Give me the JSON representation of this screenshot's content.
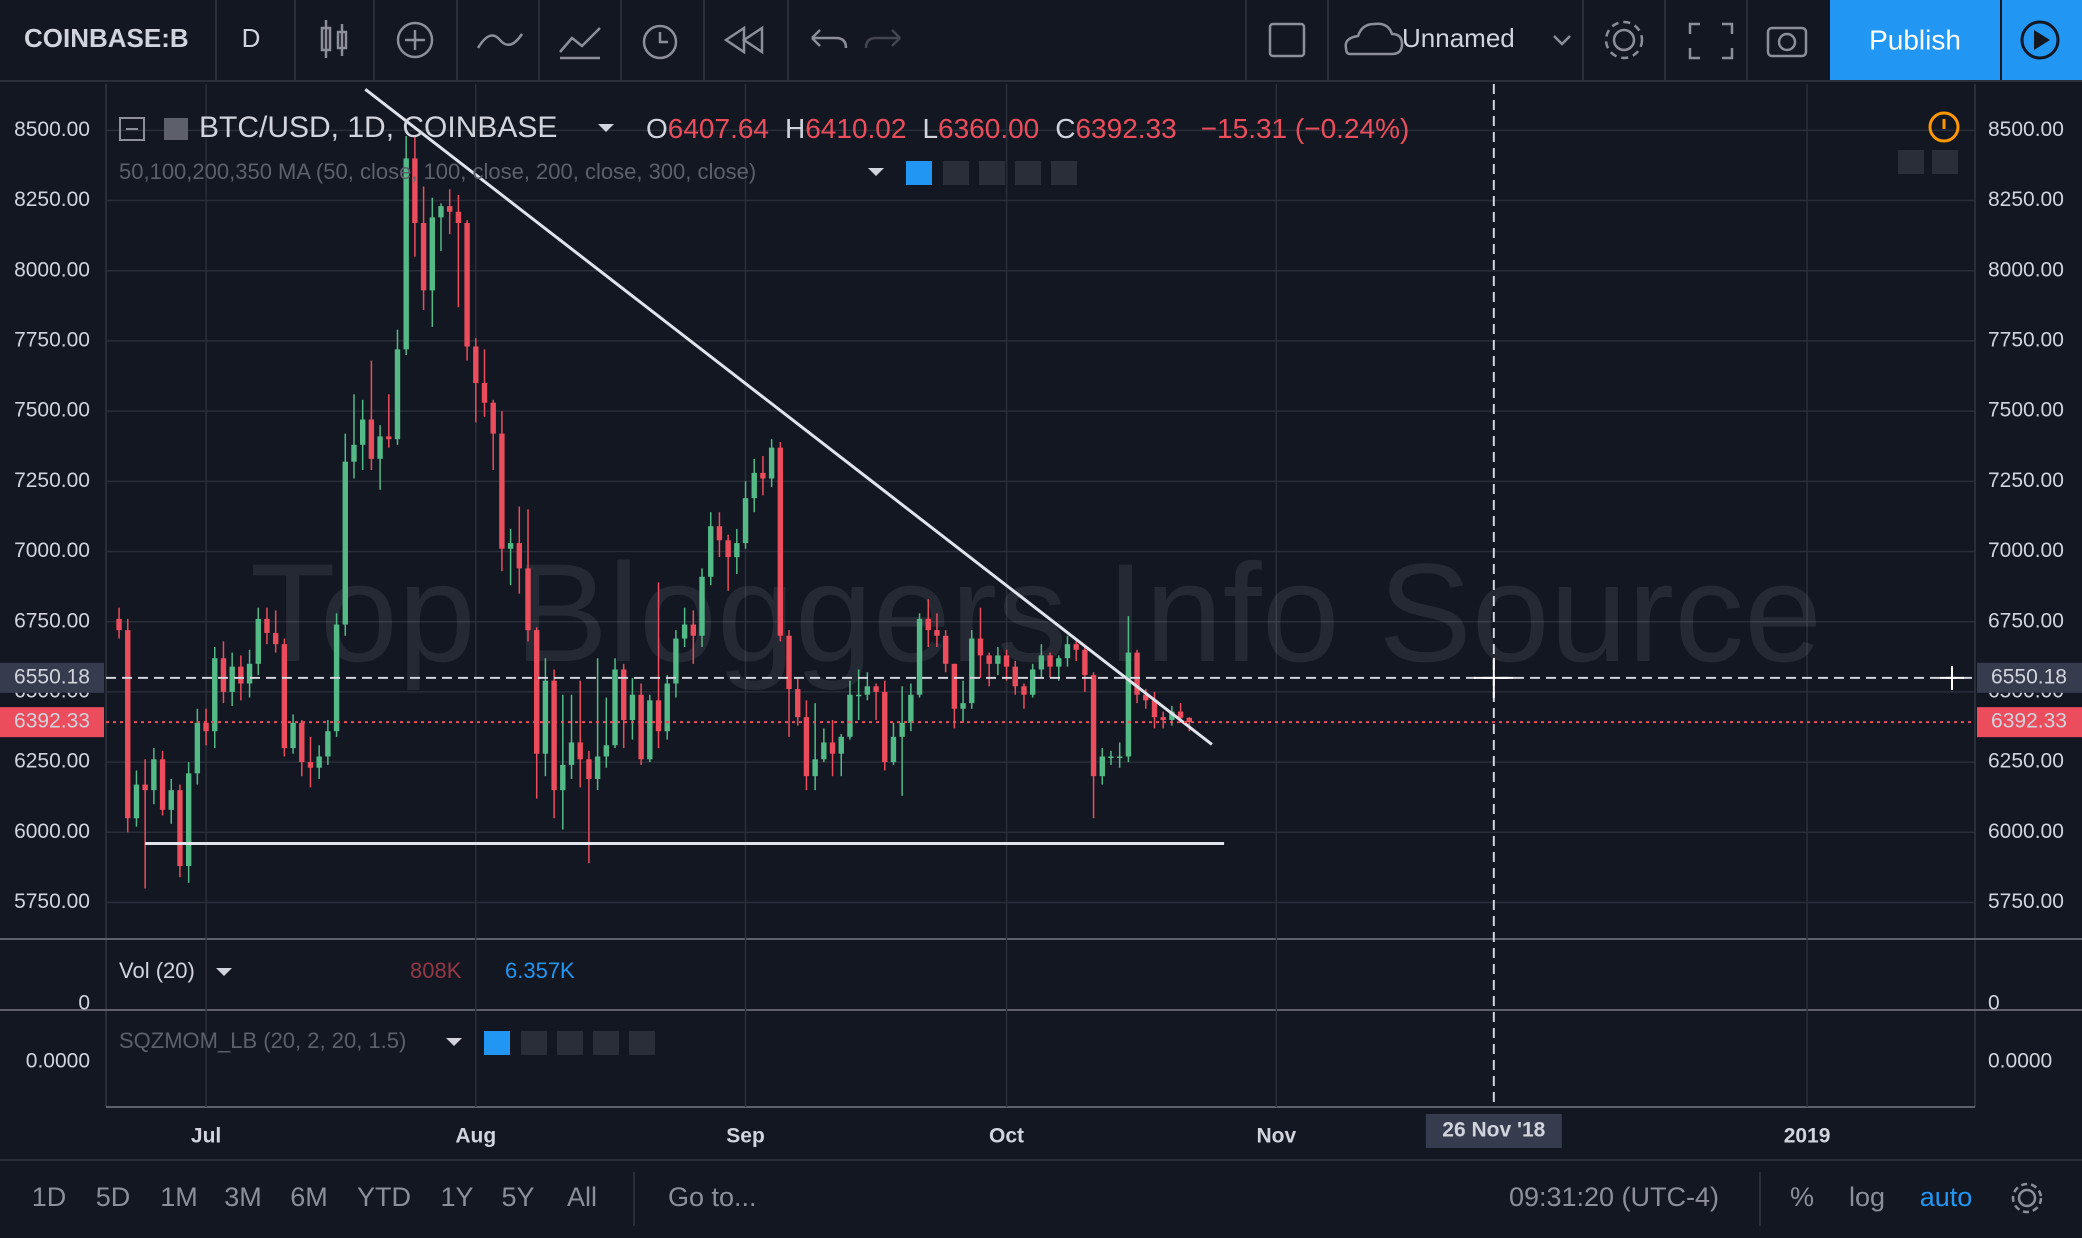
{
  "toolbar": {
    "symbol": "COINBASE:B",
    "interval": "D",
    "layout": "Unnamed",
    "publish": "Publish"
  },
  "header": {
    "title": "BTC/USD, 1D, COINBASE",
    "o_label": "O",
    "open": "6407.64",
    "h_label": "H",
    "high": "6410.02",
    "l_label": "L",
    "low": "6360.00",
    "c_label": "C",
    "close": "6392.33",
    "change": "−15.31 (−0.24%)"
  },
  "indicators": {
    "ma": "50,100,200,350 MA (50, close, 100, close, 200, close, 300, close)",
    "vol": "Vol (20)",
    "vol_value_1": "808K",
    "vol_value_2": "6.357K",
    "vol_zero": "0",
    "sqz": "SQZMOM_LB (20, 2, 20, 1.5)",
    "sqz_value": "0.0000"
  },
  "watermark": "Top Bloggers Info Source",
  "bottom_bar": {
    "ranges": [
      "1D",
      "5D",
      "1M",
      "3M",
      "6M",
      "YTD",
      "1Y",
      "5Y",
      "All"
    ],
    "goto": "Go to...",
    "clock": "09:31:20 (UTC-4)",
    "percent": "%",
    "log": "log",
    "auto": "auto"
  },
  "chart_data": {
    "type": "candlestick",
    "x": [
      -10,
      -9,
      -8,
      -7,
      -6,
      -5,
      -4,
      -3,
      -2,
      -1,
      0,
      1,
      2,
      3,
      4,
      5,
      6,
      7,
      8,
      9,
      10,
      11,
      12,
      13,
      14,
      15,
      16,
      17,
      18,
      19,
      20,
      21,
      22,
      23,
      24,
      25,
      26,
      27,
      28,
      29,
      30,
      31,
      32,
      33,
      34,
      35,
      36,
      37,
      38,
      39,
      40,
      41,
      42,
      43,
      44,
      45,
      46,
      47,
      48,
      49,
      50,
      51,
      52,
      53,
      54,
      55,
      56,
      57,
      58,
      59,
      60,
      61,
      62,
      63,
      64,
      65,
      66,
      67,
      68,
      69,
      70,
      71,
      72,
      73,
      74,
      75,
      76,
      77,
      78,
      79,
      80,
      81,
      82,
      83,
      84,
      85,
      86,
      87,
      88,
      89,
      90,
      91,
      92,
      93,
      94,
      95,
      96,
      97,
      98,
      99,
      100,
      101,
      102,
      103,
      104,
      105,
      106,
      107,
      108,
      109,
      110,
      111,
      112,
      113
    ],
    "ohlc": [
      [
        6760,
        6800,
        6690,
        6720
      ],
      [
        6720,
        6760,
        6000,
        6050
      ],
      [
        6050,
        6220,
        6020,
        6170
      ],
      [
        6170,
        6260,
        5800,
        6150
      ],
      [
        6150,
        6300,
        6100,
        6260
      ],
      [
        6260,
        6290,
        6060,
        6080
      ],
      [
        6080,
        6190,
        6030,
        6150
      ],
      [
        6150,
        6170,
        5840,
        5880
      ],
      [
        5880,
        6250,
        5820,
        6210
      ],
      [
        6210,
        6440,
        6170,
        6390
      ],
      [
        6390,
        6440,
        6310,
        6360
      ],
      [
        6360,
        6660,
        6300,
        6620
      ],
      [
        6620,
        6680,
        6460,
        6500
      ],
      [
        6500,
        6640,
        6450,
        6590
      ],
      [
        6590,
        6630,
        6470,
        6530
      ],
      [
        6530,
        6650,
        6480,
        6600
      ],
      [
        6600,
        6800,
        6560,
        6760
      ],
      [
        6760,
        6800,
        6670,
        6710
      ],
      [
        6710,
        6790,
        6640,
        6670
      ],
      [
        6670,
        6690,
        6270,
        6300
      ],
      [
        6300,
        6420,
        6280,
        6390
      ],
      [
        6390,
        6400,
        6200,
        6250
      ],
      [
        6250,
        6340,
        6160,
        6230
      ],
      [
        6230,
        6310,
        6190,
        6270
      ],
      [
        6270,
        6400,
        6240,
        6360
      ],
      [
        6360,
        6780,
        6340,
        6740
      ],
      [
        6740,
        7420,
        6700,
        7320
      ],
      [
        7320,
        7560,
        7260,
        7380
      ],
      [
        7380,
        7540,
        7290,
        7470
      ],
      [
        7470,
        7680,
        7290,
        7330
      ],
      [
        7330,
        7450,
        7220,
        7410
      ],
      [
        7410,
        7560,
        7370,
        7400
      ],
      [
        7400,
        7790,
        7380,
        7720
      ],
      [
        7720,
        8480,
        7700,
        8400
      ],
      [
        8400,
        8480,
        8050,
        8170
      ],
      [
        8170,
        8300,
        7860,
        7930
      ],
      [
        7930,
        8260,
        7800,
        8190
      ],
      [
        8190,
        8240,
        8070,
        8230
      ],
      [
        8230,
        8290,
        8130,
        8210
      ],
      [
        8210,
        8270,
        7870,
        8170
      ],
      [
        8170,
        8180,
        7680,
        7730
      ],
      [
        7730,
        7760,
        7460,
        7600
      ],
      [
        7600,
        7720,
        7480,
        7530
      ],
      [
        7530,
        7540,
        7290,
        7420
      ],
      [
        7420,
        7500,
        6930,
        7010
      ],
      [
        7010,
        7080,
        6880,
        7030
      ],
      [
        7030,
        7160,
        6850,
        6940
      ],
      [
        6940,
        7150,
        6680,
        6720
      ],
      [
        6720,
        6730,
        6120,
        6280
      ],
      [
        6280,
        6620,
        6200,
        6540
      ],
      [
        6540,
        6580,
        6050,
        6150
      ],
      [
        6150,
        6490,
        6010,
        6240
      ],
      [
        6240,
        6490,
        6190,
        6320
      ],
      [
        6320,
        6540,
        6160,
        6260
      ],
      [
        6260,
        6290,
        5890,
        6190
      ],
      [
        6190,
        6620,
        6150,
        6270
      ],
      [
        6270,
        6480,
        6230,
        6310
      ],
      [
        6310,
        6620,
        6300,
        6580
      ],
      [
        6580,
        6600,
        6300,
        6400
      ],
      [
        6400,
        6550,
        6330,
        6490
      ],
      [
        6490,
        6530,
        6240,
        6260
      ],
      [
        6260,
        6490,
        6250,
        6470
      ],
      [
        6470,
        6890,
        6300,
        6360
      ],
      [
        6360,
        6560,
        6330,
        6530
      ],
      [
        6530,
        6720,
        6480,
        6690
      ],
      [
        6690,
        6800,
        6660,
        6740
      ],
      [
        6740,
        6790,
        6600,
        6700
      ],
      [
        6700,
        6940,
        6660,
        6910
      ],
      [
        6910,
        7140,
        6880,
        7090
      ],
      [
        7090,
        7140,
        6980,
        7040
      ],
      [
        7040,
        7060,
        6860,
        6980
      ],
      [
        6980,
        7080,
        6920,
        7030
      ],
      [
        7030,
        7250,
        7010,
        7190
      ],
      [
        7190,
        7330,
        7140,
        7280
      ],
      [
        7280,
        7340,
        7200,
        7260
      ],
      [
        7260,
        7400,
        7230,
        7370
      ],
      [
        7370,
        7390,
        6680,
        6700
      ],
      [
        6700,
        6720,
        6340,
        6510
      ],
      [
        6510,
        6550,
        6380,
        6410
      ],
      [
        6410,
        6470,
        6150,
        6200
      ],
      [
        6200,
        6460,
        6150,
        6260
      ],
      [
        6260,
        6370,
        6250,
        6320
      ],
      [
        6320,
        6400,
        6200,
        6280
      ],
      [
        6280,
        6350,
        6200,
        6340
      ],
      [
        6340,
        6540,
        6330,
        6490
      ],
      [
        6490,
        6580,
        6400,
        6490
      ],
      [
        6490,
        6570,
        6470,
        6520
      ],
      [
        6520,
        6530,
        6400,
        6500
      ],
      [
        6500,
        6540,
        6220,
        6250
      ],
      [
        6250,
        6390,
        6240,
        6340
      ],
      [
        6340,
        6520,
        6130,
        6390
      ],
      [
        6390,
        6530,
        6360,
        6490
      ],
      [
        6490,
        6780,
        6480,
        6760
      ],
      [
        6760,
        6830,
        6660,
        6720
      ],
      [
        6720,
        6780,
        6660,
        6700
      ],
      [
        6700,
        6720,
        6570,
        6600
      ],
      [
        6600,
        6600,
        6370,
        6440
      ],
      [
        6440,
        6540,
        6390,
        6460
      ],
      [
        6460,
        6720,
        6440,
        6690
      ],
      [
        6690,
        6800,
        6550,
        6630
      ],
      [
        6630,
        6640,
        6520,
        6600
      ],
      [
        6600,
        6660,
        6560,
        6630
      ],
      [
        6630,
        6650,
        6540,
        6590
      ],
      [
        6590,
        6610,
        6490,
        6520
      ],
      [
        6520,
        6530,
        6440,
        6490
      ],
      [
        6490,
        6600,
        6480,
        6580
      ],
      [
        6580,
        6670,
        6550,
        6630
      ],
      [
        6630,
        6640,
        6550,
        6590
      ],
      [
        6590,
        6630,
        6540,
        6620
      ],
      [
        6620,
        6700,
        6590,
        6670
      ],
      [
        6670,
        6680,
        6610,
        6650
      ],
      [
        6650,
        6660,
        6500,
        6560
      ],
      [
        6560,
        6570,
        6050,
        6200
      ],
      [
        6200,
        6300,
        6170,
        6270
      ],
      [
        6270,
        6290,
        6240,
        6270
      ],
      [
        6270,
        6320,
        6230,
        6270
      ],
      [
        6270,
        6770,
        6250,
        6640
      ],
      [
        6640,
        6650,
        6460,
        6490
      ],
      [
        6490,
        6510,
        6440,
        6470
      ],
      [
        6470,
        6500,
        6370,
        6410
      ],
      [
        6410,
        6430,
        6370,
        6400
      ],
      [
        6400,
        6450,
        6380,
        6430
      ],
      [
        6430,
        6460,
        6390,
        6407.64
      ],
      [
        6407.64,
        6410.02,
        6360,
        6392.33
      ]
    ],
    "xlim": [
      -11.5,
      203.3
    ],
    "ylim": [
      5620,
      8665
    ],
    "yticks": [
      {
        "value": 5750,
        "label": "5750.00"
      },
      {
        "value": 6000,
        "label": "6000.00"
      },
      {
        "value": 6250,
        "label": "6250.00"
      },
      {
        "value": 6500,
        "label": "6500.00"
      },
      {
        "value": 6750,
        "label": "6750.00"
      },
      {
        "value": 7000,
        "label": "7000.00"
      },
      {
        "value": 7250,
        "label": "7250.00"
      },
      {
        "value": 7500,
        "label": "7500.00"
      },
      {
        "value": 7750,
        "label": "7750.00"
      },
      {
        "value": 8000,
        "label": "8000.00"
      },
      {
        "value": 8250,
        "label": "8250.00"
      },
      {
        "value": 8500,
        "label": "8500.00"
      }
    ],
    "xticks": [
      {
        "value": 0,
        "label": "Jul"
      },
      {
        "value": 31,
        "label": "Aug"
      },
      {
        "value": 62,
        "label": "Sep"
      },
      {
        "value": 92,
        "label": "Oct"
      },
      {
        "value": 123,
        "label": "Nov"
      },
      {
        "value": 184,
        "label": "2019"
      }
    ],
    "up_color": "#53b987",
    "down_color": "#eb4d5c",
    "grid": true,
    "price_lines": [
      {
        "value": 6550.18,
        "color": "#d1d4dc",
        "style": "dashed"
      },
      {
        "value": 6392.33,
        "color": "#eb4d5c",
        "style": "dotted"
      }
    ],
    "crosshair": {
      "x": 148,
      "label": "26 Nov '18"
    },
    "trendlines": [
      {
        "points": [
          [
            18.3,
            8646
          ],
          [
            115.6,
            6313
          ]
        ]
      },
      {
        "points": [
          [
            -7,
            5960
          ],
          [
            117,
            5960
          ]
        ]
      }
    ]
  }
}
